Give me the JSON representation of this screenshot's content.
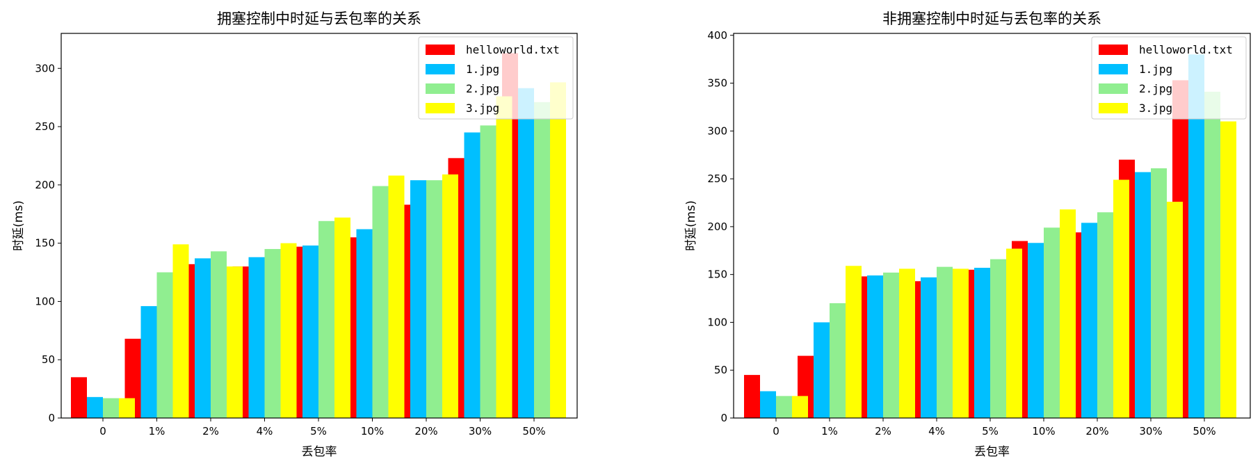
{
  "chart_data": [
    {
      "type": "bar",
      "title": "拥塞控制中时延与丢包率的关系",
      "xlabel": "丢包率",
      "ylabel": "时延(ms)",
      "categories": [
        "0",
        "1%",
        "2%",
        "4%",
        "5%",
        "10%",
        "20%",
        "30%",
        "50%"
      ],
      "ylim": [
        0,
        330
      ],
      "yticks": [
        0,
        50,
        100,
        150,
        200,
        250,
        300
      ],
      "legend": "top-right",
      "series": [
        {
          "name": "helloworld.txt",
          "color": "#ff0000",
          "values": [
            35,
            68,
            132,
            130,
            147,
            155,
            183,
            223,
            313
          ]
        },
        {
          "name": "1.jpg",
          "color": "#00bfff",
          "values": [
            18,
            96,
            137,
            138,
            148,
            162,
            204,
            245,
            283
          ]
        },
        {
          "name": "2.jpg",
          "color": "#90ee90",
          "values": [
            17,
            125,
            143,
            145,
            169,
            199,
            204,
            251,
            271
          ]
        },
        {
          "name": "3.jpg",
          "color": "#ffff00",
          "values": [
            17,
            149,
            130,
            150,
            172,
            208,
            209,
            276,
            288
          ]
        }
      ]
    },
    {
      "type": "bar",
      "title": "非拥塞控制中时延与丢包率的关系",
      "xlabel": "丢包率",
      "ylabel": "时延(ms)",
      "categories": [
        "0",
        "1%",
        "2%",
        "4%",
        "5%",
        "10%",
        "20%",
        "30%",
        "50%"
      ],
      "ylim": [
        0,
        402
      ],
      "yticks": [
        0,
        50,
        100,
        150,
        200,
        250,
        300,
        350,
        400
      ],
      "legend": "top-right",
      "series": [
        {
          "name": "helloworld.txt",
          "color": "#ff0000",
          "values": [
            45,
            65,
            148,
            143,
            155,
            185,
            194,
            270,
            353
          ]
        },
        {
          "name": "1.jpg",
          "color": "#00bfff",
          "values": [
            28,
            100,
            149,
            147,
            157,
            183,
            204,
            257,
            380
          ]
        },
        {
          "name": "2.jpg",
          "color": "#90ee90",
          "values": [
            23,
            120,
            152,
            158,
            166,
            199,
            215,
            261,
            341
          ]
        },
        {
          "name": "3.jpg",
          "color": "#ffff00",
          "values": [
            23,
            159,
            156,
            156,
            177,
            218,
            249,
            226,
            310
          ]
        }
      ]
    }
  ]
}
